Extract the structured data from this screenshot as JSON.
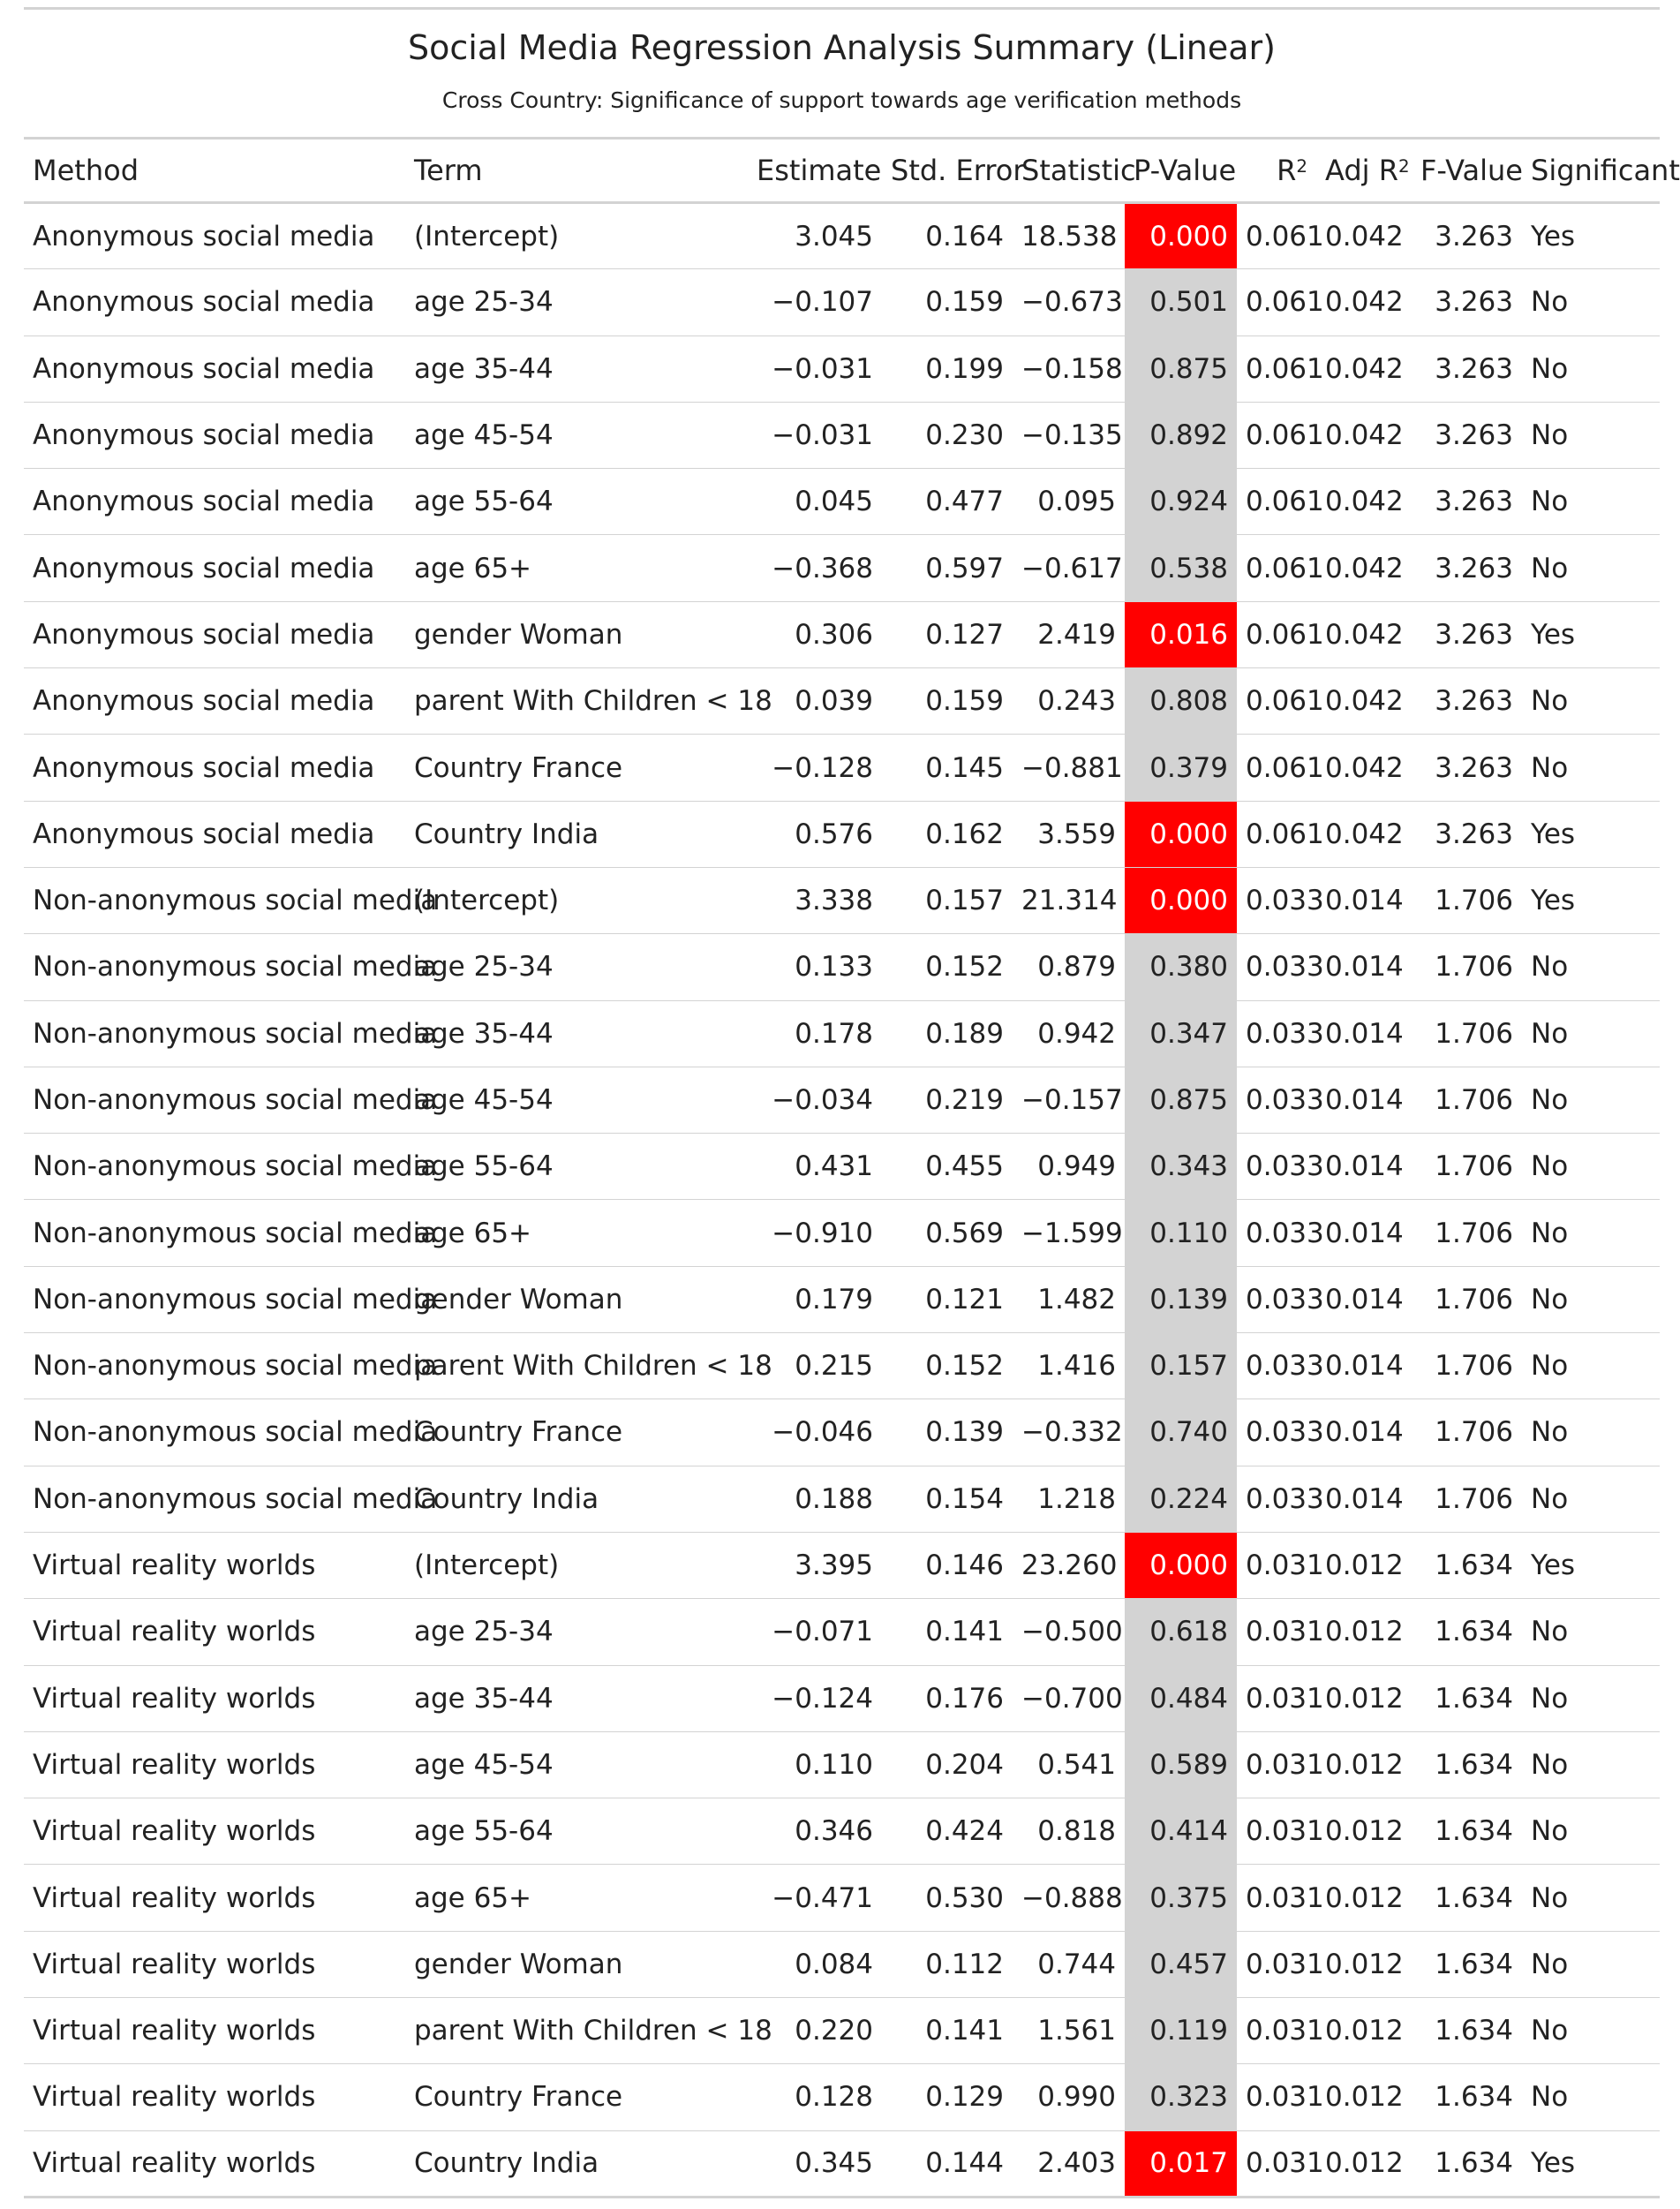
{
  "title": "Social Media Regression Analysis Summary (Linear)",
  "subtitle": "Cross Country: Significance of support towards age verification methods",
  "columns": {
    "method": "Method",
    "term": "Term",
    "estimate": "Estimate",
    "std_error": "Std. Error",
    "statistic": "Statistic",
    "p_value": "P-Value",
    "r2_base": "R",
    "r2_sup": "2",
    "adj_r2_base": "Adj R",
    "adj_r2_sup": "2",
    "f_value": "F-Value",
    "significant": "Significant"
  },
  "colors": {
    "significant_highlight": "#ff0000",
    "pvalue_background": "#d3d3d3",
    "rule": "#d3d3d3"
  },
  "rows": [
    {
      "method": "Anonymous social media",
      "term": "(Intercept)",
      "estimate": "3.045",
      "std_error": "0.164",
      "statistic": "18.538",
      "p_value": "0.000",
      "r2": "0.061",
      "adj_r2": "0.042",
      "f_value": "3.263",
      "significant": "Yes"
    },
    {
      "method": "Anonymous social media",
      "term": "age 25-34",
      "estimate": "−0.107",
      "std_error": "0.159",
      "statistic": "−0.673",
      "p_value": "0.501",
      "r2": "0.061",
      "adj_r2": "0.042",
      "f_value": "3.263",
      "significant": "No"
    },
    {
      "method": "Anonymous social media",
      "term": "age 35-44",
      "estimate": "−0.031",
      "std_error": "0.199",
      "statistic": "−0.158",
      "p_value": "0.875",
      "r2": "0.061",
      "adj_r2": "0.042",
      "f_value": "3.263",
      "significant": "No"
    },
    {
      "method": "Anonymous social media",
      "term": "age 45-54",
      "estimate": "−0.031",
      "std_error": "0.230",
      "statistic": "−0.135",
      "p_value": "0.892",
      "r2": "0.061",
      "adj_r2": "0.042",
      "f_value": "3.263",
      "significant": "No"
    },
    {
      "method": "Anonymous social media",
      "term": "age 55-64",
      "estimate": "0.045",
      "std_error": "0.477",
      "statistic": "0.095",
      "p_value": "0.924",
      "r2": "0.061",
      "adj_r2": "0.042",
      "f_value": "3.263",
      "significant": "No"
    },
    {
      "method": "Anonymous social media",
      "term": "age 65+",
      "estimate": "−0.368",
      "std_error": "0.597",
      "statistic": "−0.617",
      "p_value": "0.538",
      "r2": "0.061",
      "adj_r2": "0.042",
      "f_value": "3.263",
      "significant": "No"
    },
    {
      "method": "Anonymous social media",
      "term": "gender Woman",
      "estimate": "0.306",
      "std_error": "0.127",
      "statistic": "2.419",
      "p_value": "0.016",
      "r2": "0.061",
      "adj_r2": "0.042",
      "f_value": "3.263",
      "significant": "Yes"
    },
    {
      "method": "Anonymous social media",
      "term": "parent With Children < 18",
      "estimate": "0.039",
      "std_error": "0.159",
      "statistic": "0.243",
      "p_value": "0.808",
      "r2": "0.061",
      "adj_r2": "0.042",
      "f_value": "3.263",
      "significant": "No"
    },
    {
      "method": "Anonymous social media",
      "term": "Country France",
      "estimate": "−0.128",
      "std_error": "0.145",
      "statistic": "−0.881",
      "p_value": "0.379",
      "r2": "0.061",
      "adj_r2": "0.042",
      "f_value": "3.263",
      "significant": "No"
    },
    {
      "method": "Anonymous social media",
      "term": "Country India",
      "estimate": "0.576",
      "std_error": "0.162",
      "statistic": "3.559",
      "p_value": "0.000",
      "r2": "0.061",
      "adj_r2": "0.042",
      "f_value": "3.263",
      "significant": "Yes"
    },
    {
      "method": "Non-anonymous social media",
      "term": "(Intercept)",
      "estimate": "3.338",
      "std_error": "0.157",
      "statistic": "21.314",
      "p_value": "0.000",
      "r2": "0.033",
      "adj_r2": "0.014",
      "f_value": "1.706",
      "significant": "Yes"
    },
    {
      "method": "Non-anonymous social media",
      "term": "age 25-34",
      "estimate": "0.133",
      "std_error": "0.152",
      "statistic": "0.879",
      "p_value": "0.380",
      "r2": "0.033",
      "adj_r2": "0.014",
      "f_value": "1.706",
      "significant": "No"
    },
    {
      "method": "Non-anonymous social media",
      "term": "age 35-44",
      "estimate": "0.178",
      "std_error": "0.189",
      "statistic": "0.942",
      "p_value": "0.347",
      "r2": "0.033",
      "adj_r2": "0.014",
      "f_value": "1.706",
      "significant": "No"
    },
    {
      "method": "Non-anonymous social media",
      "term": "age 45-54",
      "estimate": "−0.034",
      "std_error": "0.219",
      "statistic": "−0.157",
      "p_value": "0.875",
      "r2": "0.033",
      "adj_r2": "0.014",
      "f_value": "1.706",
      "significant": "No"
    },
    {
      "method": "Non-anonymous social media",
      "term": "age 55-64",
      "estimate": "0.431",
      "std_error": "0.455",
      "statistic": "0.949",
      "p_value": "0.343",
      "r2": "0.033",
      "adj_r2": "0.014",
      "f_value": "1.706",
      "significant": "No"
    },
    {
      "method": "Non-anonymous social media",
      "term": "age 65+",
      "estimate": "−0.910",
      "std_error": "0.569",
      "statistic": "−1.599",
      "p_value": "0.110",
      "r2": "0.033",
      "adj_r2": "0.014",
      "f_value": "1.706",
      "significant": "No"
    },
    {
      "method": "Non-anonymous social media",
      "term": "gender Woman",
      "estimate": "0.179",
      "std_error": "0.121",
      "statistic": "1.482",
      "p_value": "0.139",
      "r2": "0.033",
      "adj_r2": "0.014",
      "f_value": "1.706",
      "significant": "No"
    },
    {
      "method": "Non-anonymous social media",
      "term": "parent With Children < 18",
      "estimate": "0.215",
      "std_error": "0.152",
      "statistic": "1.416",
      "p_value": "0.157",
      "r2": "0.033",
      "adj_r2": "0.014",
      "f_value": "1.706",
      "significant": "No"
    },
    {
      "method": "Non-anonymous social media",
      "term": "Country France",
      "estimate": "−0.046",
      "std_error": "0.139",
      "statistic": "−0.332",
      "p_value": "0.740",
      "r2": "0.033",
      "adj_r2": "0.014",
      "f_value": "1.706",
      "significant": "No"
    },
    {
      "method": "Non-anonymous social media",
      "term": "Country India",
      "estimate": "0.188",
      "std_error": "0.154",
      "statistic": "1.218",
      "p_value": "0.224",
      "r2": "0.033",
      "adj_r2": "0.014",
      "f_value": "1.706",
      "significant": "No"
    },
    {
      "method": "Virtual reality worlds",
      "term": "(Intercept)",
      "estimate": "3.395",
      "std_error": "0.146",
      "statistic": "23.260",
      "p_value": "0.000",
      "r2": "0.031",
      "adj_r2": "0.012",
      "f_value": "1.634",
      "significant": "Yes"
    },
    {
      "method": "Virtual reality worlds",
      "term": "age 25-34",
      "estimate": "−0.071",
      "std_error": "0.141",
      "statistic": "−0.500",
      "p_value": "0.618",
      "r2": "0.031",
      "adj_r2": "0.012",
      "f_value": "1.634",
      "significant": "No"
    },
    {
      "method": "Virtual reality worlds",
      "term": "age 35-44",
      "estimate": "−0.124",
      "std_error": "0.176",
      "statistic": "−0.700",
      "p_value": "0.484",
      "r2": "0.031",
      "adj_r2": "0.012",
      "f_value": "1.634",
      "significant": "No"
    },
    {
      "method": "Virtual reality worlds",
      "term": "age 45-54",
      "estimate": "0.110",
      "std_error": "0.204",
      "statistic": "0.541",
      "p_value": "0.589",
      "r2": "0.031",
      "adj_r2": "0.012",
      "f_value": "1.634",
      "significant": "No"
    },
    {
      "method": "Virtual reality worlds",
      "term": "age 55-64",
      "estimate": "0.346",
      "std_error": "0.424",
      "statistic": "0.818",
      "p_value": "0.414",
      "r2": "0.031",
      "adj_r2": "0.012",
      "f_value": "1.634",
      "significant": "No"
    },
    {
      "method": "Virtual reality worlds",
      "term": "age 65+",
      "estimate": "−0.471",
      "std_error": "0.530",
      "statistic": "−0.888",
      "p_value": "0.375",
      "r2": "0.031",
      "adj_r2": "0.012",
      "f_value": "1.634",
      "significant": "No"
    },
    {
      "method": "Virtual reality worlds",
      "term": "gender Woman",
      "estimate": "0.084",
      "std_error": "0.112",
      "statistic": "0.744",
      "p_value": "0.457",
      "r2": "0.031",
      "adj_r2": "0.012",
      "f_value": "1.634",
      "significant": "No"
    },
    {
      "method": "Virtual reality worlds",
      "term": "parent With Children < 18",
      "estimate": "0.220",
      "std_error": "0.141",
      "statistic": "1.561",
      "p_value": "0.119",
      "r2": "0.031",
      "adj_r2": "0.012",
      "f_value": "1.634",
      "significant": "No"
    },
    {
      "method": "Virtual reality worlds",
      "term": "Country France",
      "estimate": "0.128",
      "std_error": "0.129",
      "statistic": "0.990",
      "p_value": "0.323",
      "r2": "0.031",
      "adj_r2": "0.012",
      "f_value": "1.634",
      "significant": "No"
    },
    {
      "method": "Virtual reality worlds",
      "term": "Country India",
      "estimate": "0.345",
      "std_error": "0.144",
      "statistic": "2.403",
      "p_value": "0.017",
      "r2": "0.031",
      "adj_r2": "0.012",
      "f_value": "1.634",
      "significant": "Yes"
    }
  ]
}
